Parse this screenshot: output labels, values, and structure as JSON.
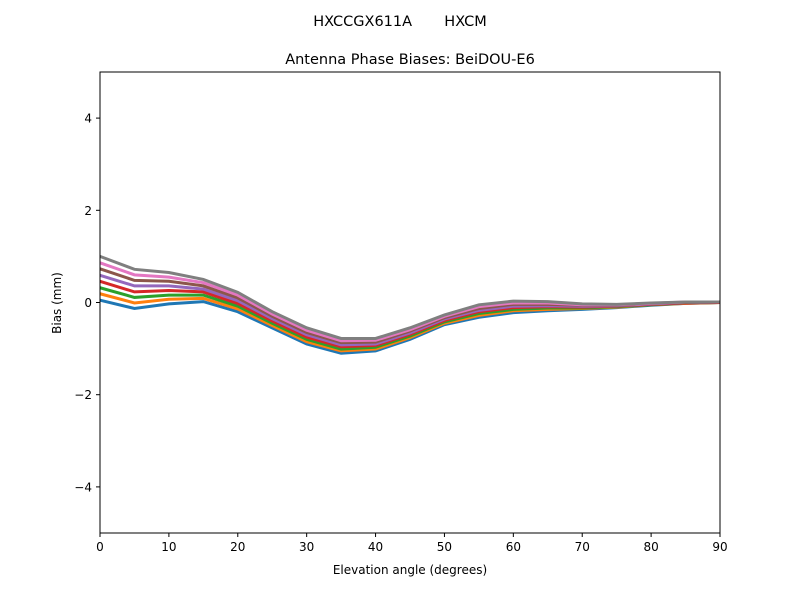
{
  "chart_data": {
    "type": "line",
    "suptitle": "HXCCGX611A       HXCM",
    "title": "Antenna Phase Biases: BeiDOU-E6",
    "xlabel": "Elevation angle (degrees)",
    "ylabel": "Bias (mm)",
    "xlim": [
      0,
      90
    ],
    "ylim": [
      -5,
      5
    ],
    "xticks": [
      0,
      10,
      20,
      30,
      40,
      50,
      60,
      70,
      80,
      90
    ],
    "yticks": [
      -4,
      -2,
      0,
      2,
      4
    ],
    "ytick_labels": [
      "−4",
      "−2",
      "0",
      "2",
      "4"
    ],
    "grid": false,
    "x": [
      0,
      5,
      10,
      15,
      20,
      25,
      30,
      35,
      40,
      45,
      50,
      55,
      60,
      65,
      70,
      75,
      80,
      85,
      90
    ],
    "colors": [
      "#1f77b4",
      "#ff7f0e",
      "#2ca02c",
      "#d62728",
      "#9467bd",
      "#8c564b",
      "#e377c2",
      "#7f7f7f",
      "#bcbd22",
      "#17becf"
    ],
    "series": [
      {
        "values": [
          0.05,
          -0.13,
          -0.03,
          0.02,
          -0.2,
          -0.55,
          -0.9,
          -1.1,
          -1.05,
          -0.8,
          -0.48,
          -0.32,
          -0.22,
          -0.18,
          -0.15,
          -0.11,
          -0.06,
          -0.02,
          0.0
        ]
      },
      {
        "values": [
          0.19,
          -0.01,
          0.07,
          0.09,
          -0.14,
          -0.5,
          -0.85,
          -1.05,
          -1.01,
          -0.76,
          -0.45,
          -0.28,
          -0.18,
          -0.15,
          -0.13,
          -0.1,
          -0.05,
          -0.02,
          0.0
        ]
      },
      {
        "values": [
          0.32,
          0.11,
          0.16,
          0.16,
          -0.08,
          -0.45,
          -0.8,
          -1.01,
          -0.97,
          -0.73,
          -0.42,
          -0.24,
          -0.15,
          -0.12,
          -0.12,
          -0.09,
          -0.05,
          -0.01,
          0.0
        ]
      },
      {
        "values": [
          0.46,
          0.23,
          0.26,
          0.23,
          -0.02,
          -0.4,
          -0.75,
          -0.96,
          -0.93,
          -0.69,
          -0.39,
          -0.2,
          -0.11,
          -0.09,
          -0.1,
          -0.08,
          -0.04,
          -0.01,
          0.0
        ]
      },
      {
        "values": [
          0.59,
          0.36,
          0.36,
          0.29,
          0.04,
          -0.35,
          -0.7,
          -0.92,
          -0.9,
          -0.66,
          -0.36,
          -0.17,
          -0.08,
          -0.07,
          -0.08,
          -0.07,
          -0.03,
          0.0,
          0.01
        ]
      },
      {
        "values": [
          0.73,
          0.48,
          0.46,
          0.36,
          0.1,
          -0.3,
          -0.65,
          -0.87,
          -0.86,
          -0.62,
          -0.33,
          -0.13,
          -0.04,
          -0.04,
          -0.06,
          -0.06,
          -0.02,
          0.0,
          0.01
        ]
      },
      {
        "values": [
          0.86,
          0.6,
          0.55,
          0.43,
          0.16,
          -0.25,
          -0.6,
          -0.83,
          -0.82,
          -0.59,
          -0.3,
          -0.09,
          -0.01,
          -0.01,
          -0.05,
          -0.05,
          -0.02,
          0.01,
          0.01
        ]
      },
      {
        "values": [
          1.0,
          0.72,
          0.65,
          0.5,
          0.22,
          -0.2,
          -0.55,
          -0.78,
          -0.78,
          -0.55,
          -0.27,
          -0.05,
          0.03,
          0.02,
          -0.03,
          -0.04,
          -0.01,
          0.01,
          0.01
        ]
      }
    ]
  }
}
